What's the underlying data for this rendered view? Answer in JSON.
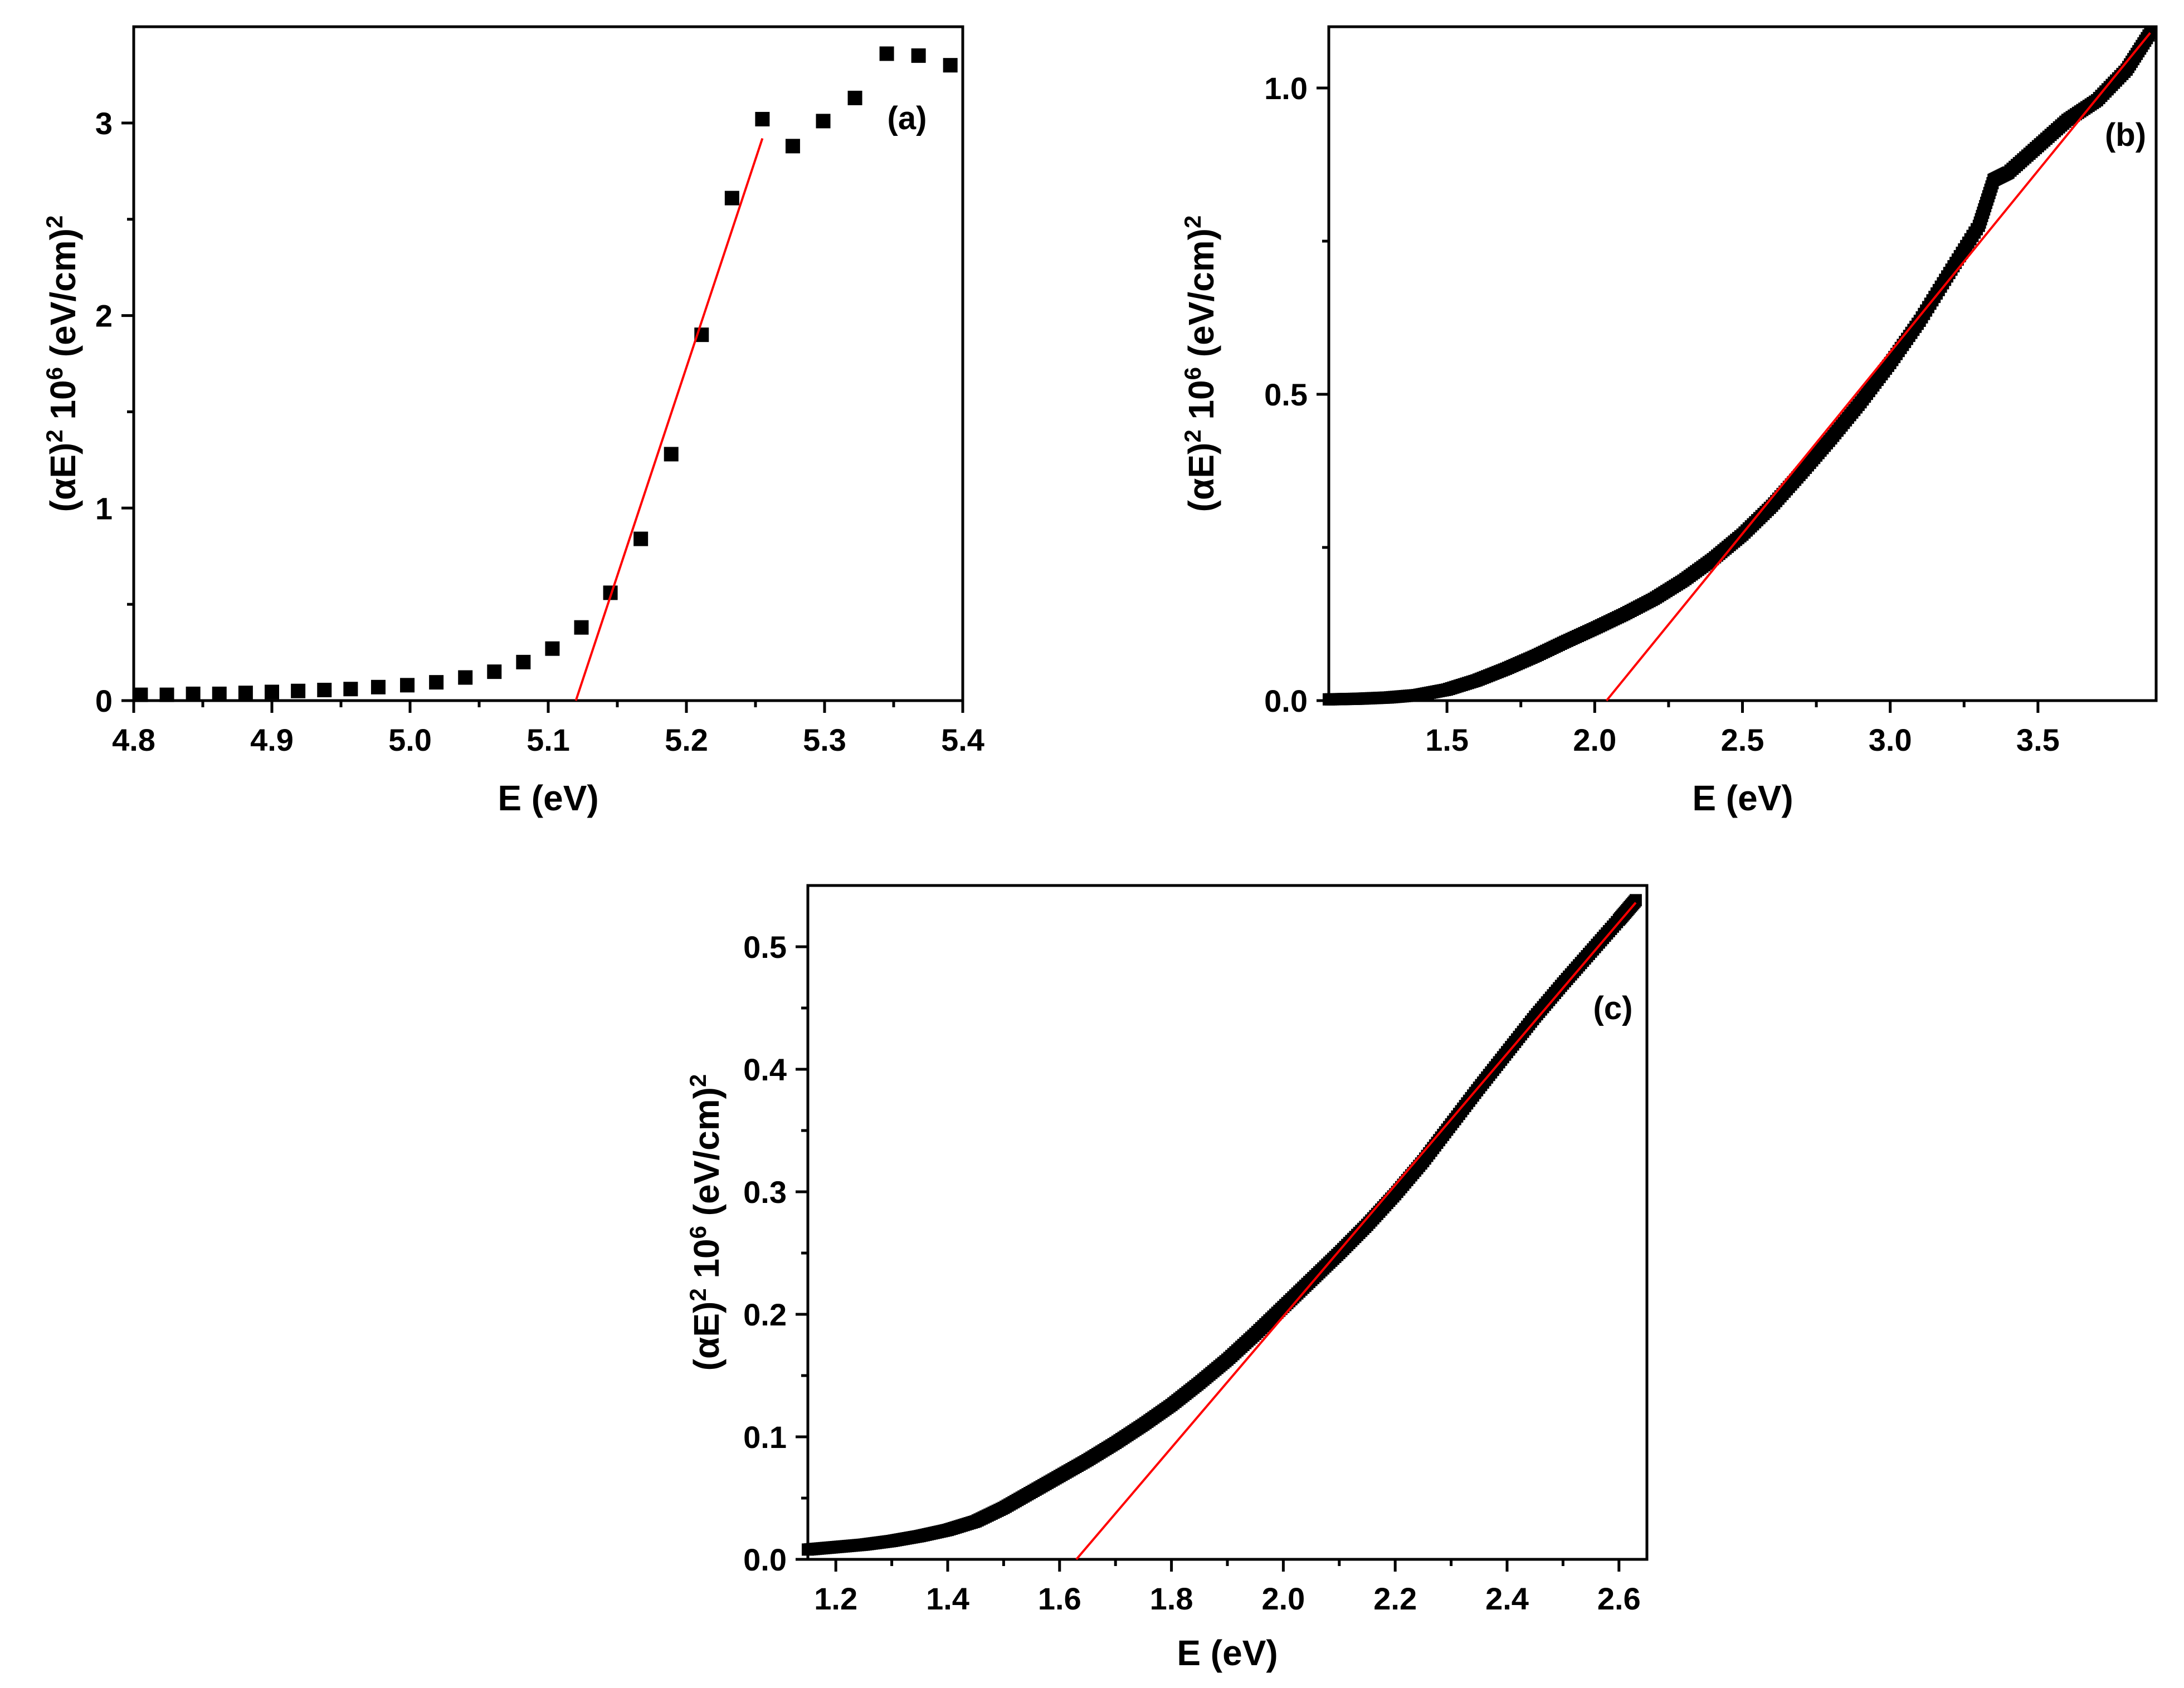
{
  "chart_data": [
    {
      "id": "a",
      "type": "scatter",
      "panel_label": "(a)",
      "xlabel": "E (eV)",
      "ylabel": {
        "pre": "(αE)",
        "sup1": "2",
        "mid": " 10",
        "sup2": "6",
        "post": " (eV/cm)",
        "sup3": "2"
      },
      "xlim": [
        4.8,
        5.4
      ],
      "ylim": [
        0,
        3.5
      ],
      "xticks": [
        4.8,
        4.9,
        5.0,
        5.1,
        5.2,
        5.3,
        5.4
      ],
      "xtick_labels": [
        "4.8",
        "4.9",
        "5.0",
        "5.1",
        "5.2",
        "5.3",
        "5.4"
      ],
      "yticks": [
        0,
        1,
        2,
        3
      ],
      "ytick_labels": [
        "0",
        "1",
        "2",
        "3"
      ],
      "marker": "square",
      "series": [
        {
          "name": "data",
          "x": [
            4.805,
            4.824,
            4.843,
            4.862,
            4.881,
            4.9,
            4.919,
            4.938,
            4.957,
            4.977,
            4.998,
            5.019,
            5.04,
            5.061,
            5.082,
            5.103,
            5.124,
            5.145,
            5.167,
            5.189,
            5.211,
            5.233,
            5.255,
            5.277,
            5.299,
            5.322,
            5.345,
            5.368,
            5.391
          ],
          "y": [
            0.03,
            0.03,
            0.035,
            0.035,
            0.04,
            0.045,
            0.05,
            0.055,
            0.06,
            0.07,
            0.08,
            0.095,
            0.12,
            0.15,
            0.2,
            0.27,
            0.38,
            0.56,
            0.84,
            1.28,
            1.9,
            2.61,
            3.02,
            2.88,
            3.01,
            3.13,
            3.36,
            3.35,
            3.3
          ]
        }
      ],
      "fit_line": {
        "x": [
          5.12,
          5.255
        ],
        "y": [
          0.0,
          2.92
        ]
      }
    },
    {
      "id": "b",
      "type": "scatter",
      "panel_label": "(b)",
      "xlabel": "E (eV)",
      "ylabel": {
        "pre": "(αE)",
        "sup1": "2",
        "mid": " 10",
        "sup2": "6",
        "post": " (eV/cm)",
        "sup3": "2"
      },
      "xlim": [
        1.1,
        3.9
      ],
      "ylim": [
        0,
        1.1
      ],
      "xticks": [
        1.5,
        2.0,
        2.5,
        3.0,
        3.5
      ],
      "xtick_labels": [
        "1.5",
        "2.0",
        "2.5",
        "3.0",
        "3.5"
      ],
      "yticks": [
        0.0,
        0.5,
        1.0
      ],
      "ytick_labels": [
        "0.0",
        "0.5",
        "1.0"
      ],
      "marker": "square-dense",
      "series": [
        {
          "name": "data",
          "x": [
            1.1,
            1.2,
            1.3,
            1.4,
            1.5,
            1.6,
            1.7,
            1.8,
            1.9,
            2.0,
            2.1,
            2.2,
            2.3,
            2.4,
            2.5,
            2.6,
            2.7,
            2.8,
            2.9,
            3.0,
            3.1,
            3.2,
            3.3,
            3.35,
            3.4,
            3.5,
            3.6,
            3.7,
            3.8,
            3.88
          ],
          "y": [
            0.002,
            0.003,
            0.005,
            0.009,
            0.018,
            0.033,
            0.052,
            0.073,
            0.096,
            0.118,
            0.141,
            0.166,
            0.196,
            0.231,
            0.271,
            0.318,
            0.372,
            0.428,
            0.487,
            0.551,
            0.62,
            0.698,
            0.775,
            0.85,
            0.862,
            0.905,
            0.948,
            0.98,
            1.03,
            1.09
          ]
        }
      ],
      "fit_line": {
        "x": [
          2.04,
          3.88
        ],
        "y": [
          0.0,
          1.09
        ]
      }
    },
    {
      "id": "c",
      "type": "scatter",
      "panel_label": "(c)",
      "xlabel": "E (eV)",
      "ylabel": {
        "pre": "(αE)",
        "sup1": "2",
        "mid": " 10",
        "sup2": "6",
        "post": " (eV/cm)",
        "sup3": "2"
      },
      "xlim": [
        1.15,
        2.65
      ],
      "ylim": [
        0,
        0.55
      ],
      "xticks": [
        1.2,
        1.4,
        1.6,
        1.8,
        2.0,
        2.2,
        2.4,
        2.6
      ],
      "xtick_labels": [
        "1.2",
        "1.4",
        "1.6",
        "1.8",
        "2.0",
        "2.2",
        "2.4",
        "2.6"
      ],
      "yticks": [
        0.0,
        0.1,
        0.2,
        0.3,
        0.4,
        0.5
      ],
      "ytick_labels": [
        "0.0",
        "0.1",
        "0.2",
        "0.3",
        "0.4",
        "0.5"
      ],
      "marker": "square-dense",
      "series": [
        {
          "name": "data",
          "x": [
            1.15,
            1.2,
            1.25,
            1.3,
            1.35,
            1.4,
            1.45,
            1.5,
            1.55,
            1.6,
            1.65,
            1.7,
            1.75,
            1.8,
            1.85,
            1.9,
            1.95,
            2.0,
            2.05,
            2.1,
            2.15,
            2.2,
            2.25,
            2.3,
            2.35,
            2.4,
            2.45,
            2.5,
            2.55,
            2.6,
            2.63
          ],
          "y": [
            0.008,
            0.01,
            0.012,
            0.015,
            0.019,
            0.024,
            0.031,
            0.042,
            0.055,
            0.068,
            0.081,
            0.095,
            0.11,
            0.126,
            0.144,
            0.163,
            0.184,
            0.206,
            0.228,
            0.25,
            0.273,
            0.298,
            0.325,
            0.355,
            0.385,
            0.414,
            0.443,
            0.47,
            0.496,
            0.522,
            0.538
          ]
        }
      ],
      "fit_line": {
        "x": [
          1.63,
          2.63
        ],
        "y": [
          0.0,
          0.536
        ]
      }
    }
  ]
}
